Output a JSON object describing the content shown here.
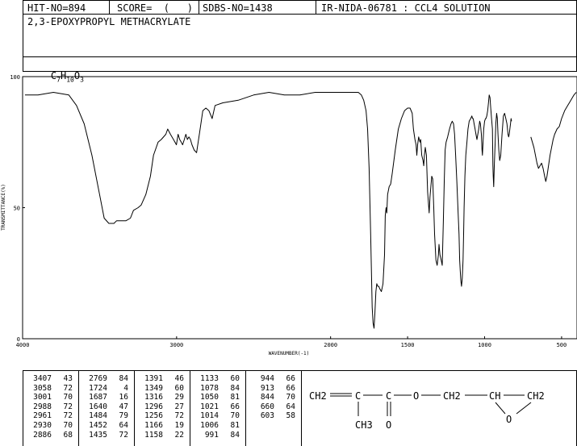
{
  "header": {
    "hit_no": "HIT-NO=894",
    "score": "SCORE=  (   )",
    "sdbs_no": "SDBS-NO=1438",
    "ir_info": "IR-NIDA-06781 : CCL4 SOLUTION"
  },
  "compound": {
    "name": "2,3-EPOXYPROPYL METHACRYLATE",
    "formula": {
      "c": "C",
      "c_n": "7",
      "h": "H",
      "h_n": "10",
      "o": "O",
      "o_n": "3"
    }
  },
  "chart_data": {
    "type": "line",
    "xlabel": "WAVENUMBER(-1)",
    "ylabel": "TRANSMITTANCE(%)",
    "xlim": [
      4000,
      400
    ],
    "ylim": [
      0,
      100
    ],
    "x_ticks": [
      "4000",
      "3000",
      "2000",
      "1500",
      "1000",
      "500"
    ],
    "y_ticks": [
      "100",
      "50",
      "0"
    ],
    "series": [
      {
        "x": [
          3985,
          3900,
          3800,
          3700,
          3650,
          3600,
          3550,
          3500,
          3470,
          3440,
          3420,
          3407,
          3390,
          3350,
          3330,
          3300,
          3280,
          3250,
          3230,
          3200,
          3170,
          3150,
          3120,
          3100,
          3070,
          3058,
          3040,
          3020,
          3001,
          2990,
          2980,
          2970,
          2961,
          2950,
          2940,
          2930,
          2920,
          2910,
          2900,
          2886,
          2870,
          2850,
          2830,
          2810,
          2790,
          2769,
          2750,
          2700,
          2600,
          2500,
          2400,
          2300,
          2200,
          2100,
          2000,
          1950,
          1900,
          1850,
          1820,
          1800,
          1785,
          1770,
          1760,
          1750,
          1740,
          1730,
          1724,
          1718,
          1712,
          1706,
          1700,
          1694,
          1687,
          1680,
          1670,
          1660,
          1650,
          1645,
          1640,
          1635,
          1630,
          1620,
          1610,
          1600,
          1580,
          1560,
          1540,
          1520,
          1500,
          1484,
          1470,
          1462,
          1452,
          1445,
          1440,
          1435,
          1428,
          1420,
          1415,
          1408,
          1400,
          1395,
          1391,
          1385,
          1378,
          1370,
          1360,
          1355,
          1349,
          1343,
          1337,
          1330,
          1325,
          1316,
          1308,
          1300,
          1296,
          1290,
          1282,
          1275,
          1268,
          1262,
          1256,
          1250,
          1240,
          1228,
          1218,
          1210,
          1202,
          1195,
          1188,
          1180,
          1172,
          1166,
          1162,
          1158,
          1154,
          1150,
          1145,
          1140,
          1136,
          1133,
          1128,
          1122,
          1115,
          1108,
          1100,
          1090,
          1083,
          1078,
          1074,
          1068,
          1062,
          1056,
          1050,
          1044,
          1038,
          1032,
          1027,
          1021,
          1017,
          1014,
          1010,
          1006,
          1000,
          994,
          991,
          986,
          980,
          975,
          970,
          965,
          960,
          955,
          949,
          946,
          944,
          941,
          937,
          932,
          927,
          922,
          917,
          913,
          908,
          902,
          895,
          887,
          878,
          870,
          862,
          855,
          848,
          844,
          840,
          836,
          832,
          828,
          825
        ],
        "y": [
          93,
          93,
          94,
          93,
          89,
          82,
          70,
          55,
          46,
          44,
          44,
          44,
          45,
          45,
          45,
          46,
          49,
          50,
          51,
          55,
          62,
          70,
          75,
          76,
          78,
          80,
          78,
          76,
          74,
          78,
          76,
          75,
          74,
          76,
          78,
          76,
          77,
          76,
          74,
          72,
          71,
          79,
          87,
          88,
          87,
          84,
          89,
          90,
          91,
          93,
          94,
          93,
          93,
          94,
          94,
          94,
          94,
          94,
          94,
          93,
          91,
          87,
          80,
          65,
          40,
          12,
          6,
          4,
          10,
          18,
          21,
          20,
          20,
          19,
          18,
          21,
          32,
          47,
          50,
          48,
          55,
          58,
          59,
          63,
          72,
          80,
          84,
          87,
          88,
          88,
          86,
          80,
          76,
          74,
          70,
          74,
          77,
          75,
          76,
          70,
          68,
          66,
          70,
          73,
          70,
          56,
          48,
          54,
          58,
          62,
          61,
          50,
          40,
          30,
          28,
          32,
          36,
          32,
          30,
          28,
          45,
          60,
          72,
          75,
          77,
          80,
          82,
          83,
          82,
          78,
          70,
          60,
          48,
          40,
          30,
          26,
          22,
          20,
          23,
          30,
          40,
          50,
          62,
          70,
          75,
          80,
          83,
          84,
          85,
          84,
          84,
          82,
          80,
          78,
          76,
          78,
          80,
          83,
          82,
          78,
          72,
          70,
          75,
          80,
          83,
          84,
          84,
          85,
          87,
          90,
          93,
          92,
          88,
          84,
          80,
          66,
          62,
          58,
          66,
          74,
          82,
          86,
          84,
          78,
          72,
          68,
          70,
          78,
          85,
          86,
          84,
          82,
          78,
          77,
          78,
          80,
          82,
          84,
          83
        ]
      },
      {
        "x": [
          700,
          690,
          680,
          670,
          660,
          650,
          640,
          630,
          620,
          610,
          603,
          595,
          585,
          575,
          565,
          555,
          545,
          530,
          515,
          500,
          480,
          460,
          440,
          420,
          405
        ],
        "y": [
          77,
          75,
          73,
          70,
          67,
          65,
          66,
          67,
          65,
          62,
          60,
          62,
          66,
          70,
          73,
          76,
          78,
          80,
          81,
          84,
          87,
          89,
          91,
          93,
          94
        ]
      }
    ]
  },
  "peak_table": {
    "columns": [
      [
        [
          "3407",
          "43"
        ],
        [
          "3058",
          "72"
        ],
        [
          "3001",
          "70"
        ],
        [
          "2988",
          "72"
        ],
        [
          "2961",
          "72"
        ],
        [
          "2930",
          "70"
        ],
        [
          "2886",
          "68"
        ]
      ],
      [
        [
          "2769",
          "84"
        ],
        [
          "1724",
          "4"
        ],
        [
          "1687",
          "16"
        ],
        [
          "1640",
          "47"
        ],
        [
          "1484",
          "79"
        ],
        [
          "1452",
          "64"
        ],
        [
          "1435",
          "72"
        ]
      ],
      [
        [
          "1391",
          "46"
        ],
        [
          "1349",
          "60"
        ],
        [
          "1316",
          "29"
        ],
        [
          "1296",
          "27"
        ],
        [
          "1256",
          "72"
        ],
        [
          "1166",
          "19"
        ],
        [
          "1158",
          "22"
        ]
      ],
      [
        [
          "1133",
          "60"
        ],
        [
          "1078",
          "84"
        ],
        [
          "1050",
          "81"
        ],
        [
          "1021",
          "66"
        ],
        [
          "1014",
          "70"
        ],
        [
          "1006",
          "81"
        ],
        [
          "991",
          "84"
        ]
      ],
      [
        [
          "944",
          "66"
        ],
        [
          "913",
          "66"
        ],
        [
          "844",
          "70"
        ],
        [
          "660",
          "64"
        ],
        [
          "603",
          "58"
        ]
      ]
    ]
  },
  "structure": {
    "ch2_left": "CH2",
    "c1": "C",
    "c2": "C",
    "o_link": "O",
    "ch2_mid": "CH2",
    "ch": "CH",
    "ch2_right": "CH2",
    "ch3": "CH3",
    "o_carbonyl": "O",
    "o_epoxide": "O"
  }
}
